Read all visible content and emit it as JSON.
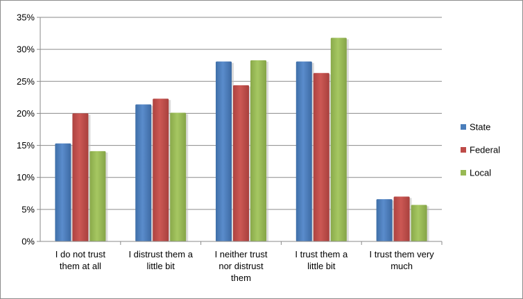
{
  "chart_data": {
    "type": "bar",
    "title": "",
    "xlabel": "",
    "ylabel": "",
    "categories": [
      [
        "I do not trust",
        "them at all"
      ],
      [
        "I distrust them a",
        "little bit"
      ],
      [
        "I neither trust",
        "nor distrust",
        "them"
      ],
      [
        "I trust them a",
        "little bit"
      ],
      [
        "I trust them very",
        "much"
      ]
    ],
    "series": [
      {
        "name": "State",
        "color": "#4a7ebb",
        "values": [
          15.3,
          21.4,
          28.1,
          28.1,
          6.6
        ]
      },
      {
        "name": "Federal",
        "color": "#be4b48",
        "values": [
          20.0,
          22.3,
          24.4,
          26.3,
          7.0
        ]
      },
      {
        "name": "Local",
        "color": "#98b954",
        "values": [
          14.1,
          20.1,
          28.3,
          31.8,
          5.7
        ]
      }
    ],
    "ylim": [
      0,
      35
    ],
    "yticks": [
      "0%",
      "5%",
      "10%",
      "15%",
      "20%",
      "25%",
      "30%",
      "35%"
    ],
    "grid": true,
    "legend": "right"
  }
}
